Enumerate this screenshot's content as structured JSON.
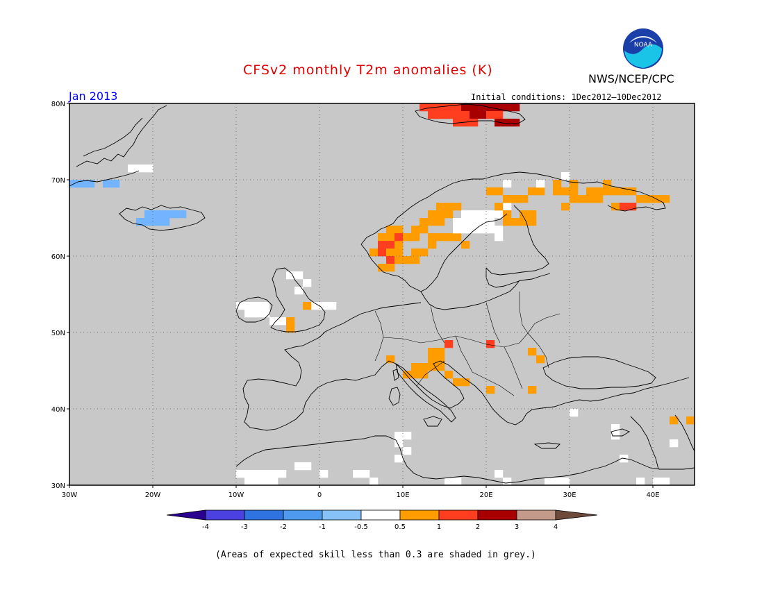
{
  "header": {
    "title": "CFSv2 monthly T2m anomalies (K)",
    "agency": "NWS/NCEP/CPC",
    "logo_text": "NOAA",
    "month": "Jan 2013",
    "initial_conditions": "Initial conditions: 1Dec2012—10Dec2012"
  },
  "footer": {
    "note": "(Areas of expected skill less than 0.3 are shaded in grey.)"
  },
  "colors": {
    "grey": "#c8c8c8",
    "white": "#ffffff",
    "orange": "#ff9d00",
    "red": "#ff3d1f",
    "darkred": "#a80000",
    "lightblue": "#72b4ff",
    "coast": "#000000"
  },
  "chart_data": {
    "type": "heatmap",
    "lon_range": [
      -30,
      45
    ],
    "lat_range": [
      30,
      80
    ],
    "x_ticks": [
      "30W",
      "20W",
      "10W",
      "0",
      "10E",
      "20E",
      "30E",
      "40E"
    ],
    "y_ticks": [
      "80N",
      "70N",
      "60N",
      "50N",
      "40N",
      "30N"
    ],
    "grid": true,
    "colorbar": {
      "boundaries": [
        "-4",
        "-3",
        "-2",
        "-1",
        "-0.5",
        "0.5",
        "1",
        "2",
        "3",
        "4"
      ],
      "colors": [
        "#2a0090",
        "#4b40e0",
        "#2f73e0",
        "#4d9aee",
        "#86c2f7",
        "#ffffff",
        "#ff9d00",
        "#ff3d1f",
        "#a80000",
        "#c49a8a",
        "#6e4a3a"
      ]
    },
    "anomaly_regions": [
      {
        "name": "svalbard-positive",
        "category": "1 to 2 / 2 to 3",
        "lon": [
          10,
          24
        ],
        "lat": [
          78,
          80
        ]
      },
      {
        "name": "norway-coast-positive",
        "category": "0.5 to 1 / 1 to 2",
        "lon": [
          5,
          16
        ],
        "lat": [
          58,
          67
        ]
      },
      {
        "name": "north-finland-kola-positive",
        "category": "0.5 to 1",
        "lon": [
          17,
          41
        ],
        "lat": [
          65,
          70
        ]
      },
      {
        "name": "sweden-neutral",
        "category": "-0.5 to 0.5",
        "lon": [
          15,
          22
        ],
        "lat": [
          62,
          66
        ]
      },
      {
        "name": "alps-positive",
        "category": "0.5 to 1",
        "lon": [
          7,
          16
        ],
        "lat": [
          44,
          48
        ]
      },
      {
        "name": "iceland-negative",
        "category": "-1 to -0.5",
        "lon": [
          -22,
          -16
        ],
        "lat": [
          63,
          65
        ]
      },
      {
        "name": "greenland-east-negative",
        "category": "-1 to -0.5",
        "lon": [
          -30,
          -26
        ],
        "lat": [
          68,
          70
        ]
      },
      {
        "name": "ireland-uk-neutral",
        "category": "-0.5 to 0.5",
        "lon": [
          -10,
          2
        ],
        "lat": [
          51,
          59
        ]
      },
      {
        "name": "north-africa-neutral",
        "category": "-0.5 to 0.5",
        "lon": [
          -10,
          10
        ],
        "lat": [
          30,
          33
        ]
      }
    ]
  }
}
